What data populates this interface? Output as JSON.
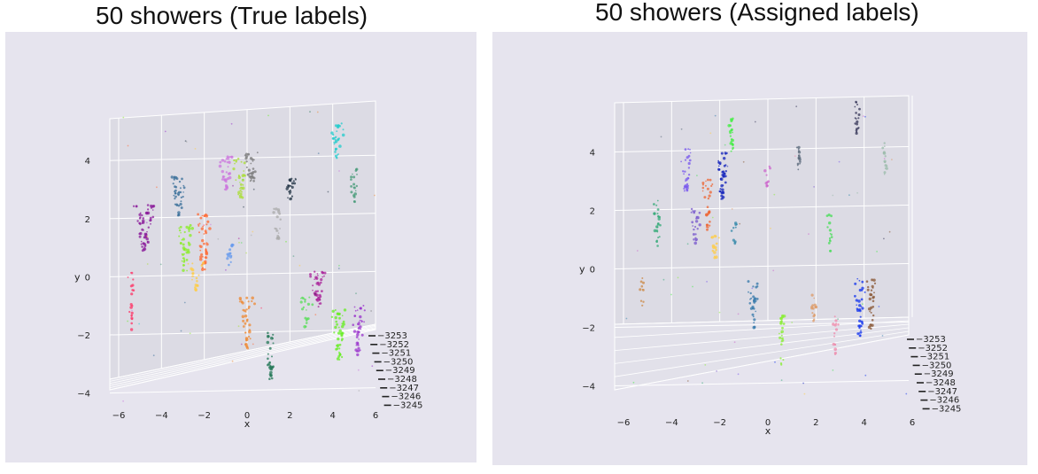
{
  "chart_data": [
    {
      "type": "scatter3d",
      "title": "50 showers (True labels)",
      "xlabel": "x",
      "ylabel": "y",
      "zlabel": "",
      "x_ticks": [
        "−6",
        "−4",
        "−2",
        "0",
        "2",
        "4",
        "6"
      ],
      "y_ticks": [
        "4",
        "2",
        "0",
        "−2",
        "−4"
      ],
      "z_ticks": [
        "−3253",
        "−3252",
        "−3251",
        "−3250",
        "−3249",
        "−3248",
        "−3247",
        "−3246",
        "−3245"
      ],
      "xlim": [
        -6,
        6
      ],
      "ylim": [
        -4.5,
        5.5
      ],
      "zlim": [
        -3253,
        -3245
      ],
      "grid": true,
      "showers": [
        {
          "x": -4.8,
          "y": 1.5,
          "color": "#8a1a9a",
          "len": 1.6,
          "spread": 0.4,
          "n": 60
        },
        {
          "x": -3.2,
          "y": 2.6,
          "color": "#3a6f9a",
          "len": 1.4,
          "spread": 0.3,
          "n": 40
        },
        {
          "x": -2.0,
          "y": 1.0,
          "color": "#ff6a33",
          "len": 2.0,
          "spread": 0.3,
          "n": 45
        },
        {
          "x": -2.9,
          "y": 0.8,
          "color": "#88ee22",
          "len": 1.6,
          "spread": 0.3,
          "n": 40
        },
        {
          "x": -1.0,
          "y": 3.4,
          "color": "#cc77dd",
          "len": 1.2,
          "spread": 0.3,
          "n": 35
        },
        {
          "x": -0.3,
          "y": 3.2,
          "color": "#aadd33",
          "len": 1.4,
          "spread": 0.3,
          "n": 35
        },
        {
          "x": 0.2,
          "y": 3.6,
          "color": "#777777",
          "len": 1.0,
          "spread": 0.3,
          "n": 30
        },
        {
          "x": 2.0,
          "y": 2.8,
          "color": "#223344",
          "len": 0.8,
          "spread": 0.2,
          "n": 25
        },
        {
          "x": 4.2,
          "y": 4.5,
          "color": "#22cccc",
          "len": 1.2,
          "spread": 0.3,
          "n": 35
        },
        {
          "x": 5.0,
          "y": 3.0,
          "color": "#449977",
          "len": 1.2,
          "spread": 0.2,
          "n": 20
        },
        {
          "x": 3.3,
          "y": -0.6,
          "color": "#aa2299",
          "len": 1.3,
          "spread": 0.3,
          "n": 40
        },
        {
          "x": 0.0,
          "y": -1.8,
          "color": "#ee8833",
          "len": 1.8,
          "spread": 0.3,
          "n": 40
        },
        {
          "x": 1.1,
          "y": -2.9,
          "color": "#227755",
          "len": 1.6,
          "spread": 0.2,
          "n": 30
        },
        {
          "x": 4.3,
          "y": -2.2,
          "color": "#66ee22",
          "len": 1.8,
          "spread": 0.3,
          "n": 45
        },
        {
          "x": 5.2,
          "y": -2.0,
          "color": "#9933cc",
          "len": 1.8,
          "spread": 0.3,
          "n": 40
        },
        {
          "x": -0.8,
          "y": 0.6,
          "color": "#6699ee",
          "len": 0.8,
          "spread": 0.2,
          "n": 15
        },
        {
          "x": -2.4,
          "y": -0.2,
          "color": "#ffcc44",
          "len": 1.0,
          "spread": 0.3,
          "n": 20
        },
        {
          "x": -5.4,
          "y": -1.0,
          "color": "#ff3366",
          "len": 2.0,
          "spread": 0.1,
          "n": 20
        },
        {
          "x": 2.8,
          "y": -1.4,
          "color": "#55dd55",
          "len": 1.2,
          "spread": 0.3,
          "n": 20
        },
        {
          "x": 1.4,
          "y": 1.6,
          "color": "#aaaaaa",
          "len": 1.4,
          "spread": 0.2,
          "n": 20
        }
      ]
    },
    {
      "type": "scatter3d",
      "title": "50 showers (Assigned labels)",
      "xlabel": "x",
      "ylabel": "y",
      "zlabel": "",
      "x_ticks": [
        "−6",
        "−4",
        "−2",
        "0",
        "2",
        "4",
        "6"
      ],
      "y_ticks": [
        "4",
        "2",
        "0",
        "−2",
        "−4"
      ],
      "z_ticks": [
        "−3253",
        "−3252",
        "−3251",
        "−3250",
        "−3249",
        "−3248",
        "−3247",
        "−3246",
        "−3245"
      ],
      "xlim": [
        -6,
        6
      ],
      "ylim": [
        -4.5,
        5.5
      ],
      "zlim": [
        -3253,
        -3245
      ],
      "grid": true,
      "showers": [
        {
          "x": -3.4,
          "y": 3.2,
          "color": "#7755ee",
          "len": 1.6,
          "spread": 0.2,
          "n": 30
        },
        {
          "x": -1.9,
          "y": 3.0,
          "color": "#1122bb",
          "len": 1.6,
          "spread": 0.2,
          "n": 40
        },
        {
          "x": -1.5,
          "y": 4.4,
          "color": "#44ee44",
          "len": 1.2,
          "spread": 0.1,
          "n": 25
        },
        {
          "x": 1.3,
          "y": 3.6,
          "color": "#556677",
          "len": 0.8,
          "spread": 0.1,
          "n": 15
        },
        {
          "x": 3.7,
          "y": 5.0,
          "color": "#333355",
          "len": 1.2,
          "spread": 0.1,
          "n": 20
        },
        {
          "x": -2.5,
          "y": 2.0,
          "color": "#ee6633",
          "len": 1.8,
          "spread": 0.2,
          "n": 30
        },
        {
          "x": -3.0,
          "y": 1.4,
          "color": "#7755cc",
          "len": 1.6,
          "spread": 0.2,
          "n": 25
        },
        {
          "x": -4.6,
          "y": 1.4,
          "color": "#33aa77",
          "len": 1.6,
          "spread": 0.2,
          "n": 25
        },
        {
          "x": 0.6,
          "y": -2.6,
          "color": "#88ee33",
          "len": 1.8,
          "spread": 0.1,
          "n": 25
        },
        {
          "x": -0.6,
          "y": -1.4,
          "color": "#3377aa",
          "len": 1.6,
          "spread": 0.2,
          "n": 30
        },
        {
          "x": 3.8,
          "y": -1.5,
          "color": "#1133ee",
          "len": 2.0,
          "spread": 0.2,
          "n": 35
        },
        {
          "x": 4.3,
          "y": -1.4,
          "color": "#885533",
          "len": 1.8,
          "spread": 0.2,
          "n": 30
        },
        {
          "x": 2.8,
          "y": -2.4,
          "color": "#ee88aa",
          "len": 1.4,
          "spread": 0.1,
          "n": 15
        },
        {
          "x": 2.6,
          "y": 1.0,
          "color": "#44dd55",
          "len": 1.4,
          "spread": 0.1,
          "n": 15
        },
        {
          "x": 4.9,
          "y": 3.6,
          "color": "#99bbaa",
          "len": 1.2,
          "spread": 0.1,
          "n": 15
        },
        {
          "x": -2.2,
          "y": 0.6,
          "color": "#ffcc44",
          "len": 1.0,
          "spread": 0.2,
          "n": 15
        },
        {
          "x": 1.9,
          "y": -1.6,
          "color": "#dd9966",
          "len": 1.2,
          "spread": 0.1,
          "n": 15
        },
        {
          "x": -5.2,
          "y": -1.0,
          "color": "#cc8844",
          "len": 1.0,
          "spread": 0.1,
          "n": 10
        },
        {
          "x": 0.0,
          "y": 3.0,
          "color": "#cc66cc",
          "len": 0.8,
          "spread": 0.1,
          "n": 10
        },
        {
          "x": -1.4,
          "y": 1.0,
          "color": "#3388aa",
          "len": 0.8,
          "spread": 0.1,
          "n": 10
        }
      ]
    }
  ]
}
